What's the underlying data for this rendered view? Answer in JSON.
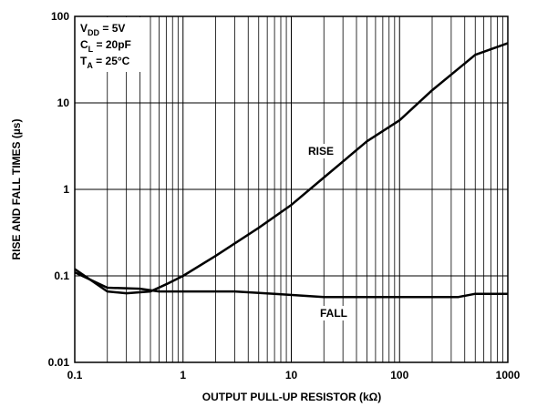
{
  "chart_data": {
    "type": "line",
    "xlabel": "OUTPUT PULL-UP RESISTOR (kΩ)",
    "ylabel": "RISE AND FALL TIMES (µs)",
    "xscale": "log",
    "yscale": "log",
    "grid": true,
    "minor_grid_x": true,
    "xlim": [
      0.1,
      1000
    ],
    "xticks": [
      0.1,
      1,
      10,
      100,
      1000
    ],
    "ylim": [
      0.01,
      100
    ],
    "yticks": [
      0.01,
      0.1,
      1,
      10,
      100
    ],
    "conditions": [
      {
        "main": "V",
        "sub": "DD",
        "rest": " = 5V"
      },
      {
        "main": "C",
        "sub": "L",
        "rest": " = 20pF"
      },
      {
        "main": "T",
        "sub": "A",
        "rest": " = 25°C"
      }
    ],
    "series": [
      {
        "name": "RISE",
        "color": "#000000",
        "x": [
          0.1,
          0.2,
          0.3,
          0.5,
          0.7,
          1,
          2,
          5,
          10,
          20,
          50,
          100,
          200,
          500,
          1000
        ],
        "values": [
          0.12,
          0.066,
          0.063,
          0.066,
          0.08,
          0.1,
          0.17,
          0.36,
          0.66,
          1.37,
          3.6,
          6.3,
          14,
          36,
          49
        ]
      },
      {
        "name": "FALL",
        "color": "#000000",
        "x": [
          0.1,
          0.2,
          0.4,
          0.6,
          1,
          3,
          7,
          20,
          50,
          350,
          500,
          1000
        ],
        "values": [
          0.11,
          0.073,
          0.071,
          0.066,
          0.066,
          0.066,
          0.062,
          0.057,
          0.057,
          0.057,
          0.062,
          0.062
        ]
      }
    ]
  }
}
